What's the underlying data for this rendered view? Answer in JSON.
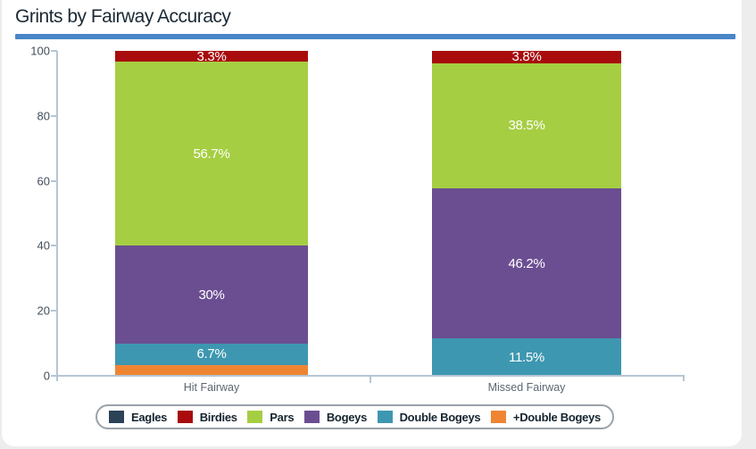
{
  "page": {
    "title": "Grints by Fairway Accuracy"
  },
  "colors": {
    "divider": "#4a85c7",
    "axis": "#b5c5d5",
    "tick_label": "#424f5a",
    "category_label": "#5b6670",
    "legend_text": "#15242f",
    "segment_label": "#ffffff"
  },
  "chart_data": {
    "type": "bar",
    "stacked": true,
    "title": "Grints by Fairway Accuracy",
    "categories": [
      "Hit Fairway",
      "Missed Fairway"
    ],
    "series": [
      {
        "name": "Eagles",
        "color": "#2b4257",
        "values": [
          0,
          0
        ],
        "labels": [
          "",
          ""
        ]
      },
      {
        "name": "Birdies",
        "color": "#a80c0d",
        "values": [
          3.3,
          3.8
        ],
        "labels": [
          "3.3%",
          "3.8%"
        ]
      },
      {
        "name": "Pars",
        "color": "#a6ce42",
        "values": [
          56.7,
          38.5
        ],
        "labels": [
          "56.7%",
          "38.5%"
        ]
      },
      {
        "name": "Bogeys",
        "color": "#6b4e92",
        "values": [
          30,
          46.2
        ],
        "labels": [
          "30%",
          "46.2%"
        ]
      },
      {
        "name": "Double Bogeys",
        "color": "#3e97b0",
        "values": [
          6.7,
          11.5
        ],
        "labels": [
          "6.7%",
          "11.5%"
        ]
      },
      {
        "name": "+Double Bogeys",
        "color": "#ef8532",
        "values": [
          3.3,
          0
        ],
        "labels": [
          "",
          ""
        ]
      }
    ],
    "xlabel": "",
    "ylabel": "",
    "ylim": [
      0,
      100
    ],
    "yticks": [
      0,
      20,
      40,
      60,
      80,
      100
    ],
    "grid": false,
    "legend_position": "bottom"
  }
}
